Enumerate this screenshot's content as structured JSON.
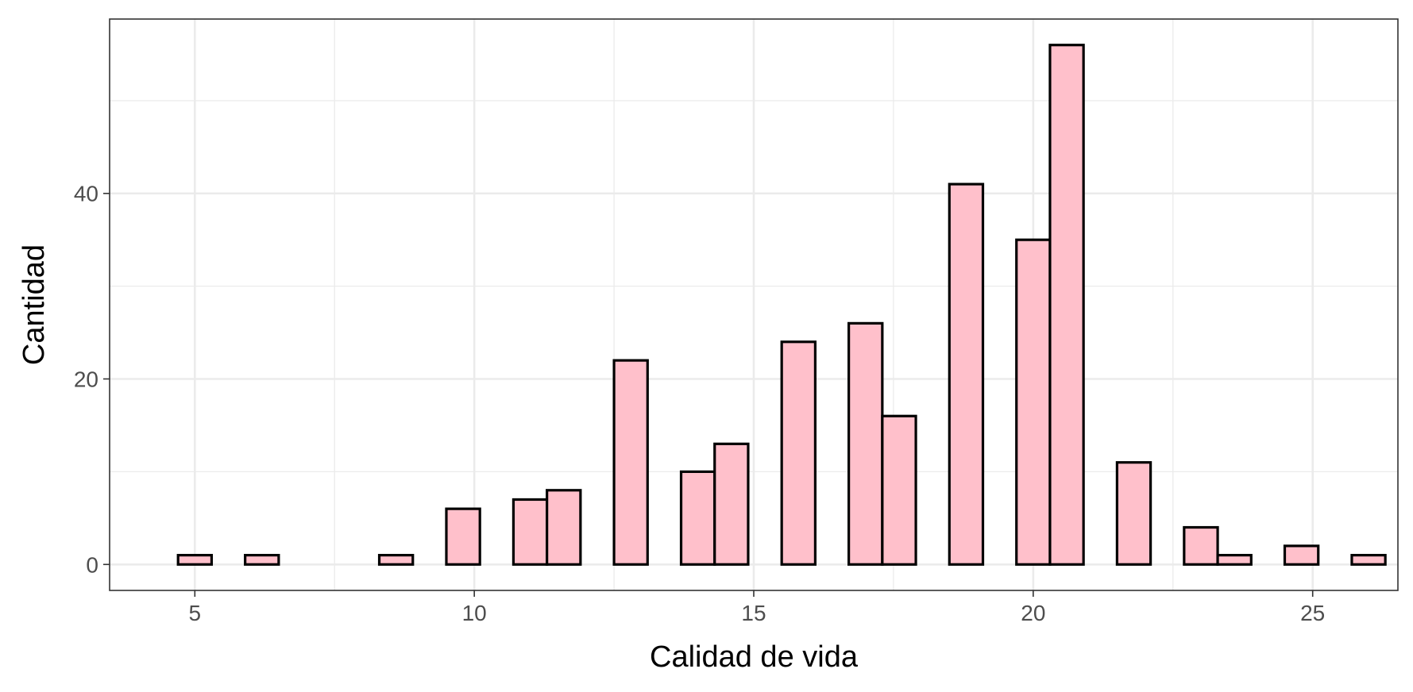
{
  "chart_data": {
    "type": "bar",
    "subtype": "histogram",
    "title": "",
    "xlabel": "Calidad de vida",
    "ylabel": "Cantidad",
    "xlim": [
      3.475,
      26.525
    ],
    "ylim": [
      -2.8,
      58.8
    ],
    "x_ticks": [
      5,
      10,
      15,
      20,
      25
    ],
    "y_ticks": [
      0,
      20,
      40
    ],
    "x_minor_ticks": [
      7.5,
      12.5,
      17.5,
      22.5
    ],
    "y_minor_ticks": [
      10,
      30,
      50
    ],
    "grid": true,
    "legend": "none",
    "bin_width": 0.6,
    "bin_start": 4.7,
    "counts": [
      1,
      0,
      1,
      0,
      0,
      0,
      1,
      0,
      6,
      0,
      7,
      8,
      0,
      22,
      0,
      10,
      13,
      0,
      24,
      0,
      26,
      16,
      0,
      41,
      0,
      35,
      56,
      0,
      11,
      0,
      4,
      1,
      0,
      2,
      0,
      1
    ],
    "colors": {
      "bar_fill": "#ffc0cb",
      "bar_stroke": "#000000",
      "grid": "#ebebeb",
      "panel_border": "#333333"
    }
  }
}
